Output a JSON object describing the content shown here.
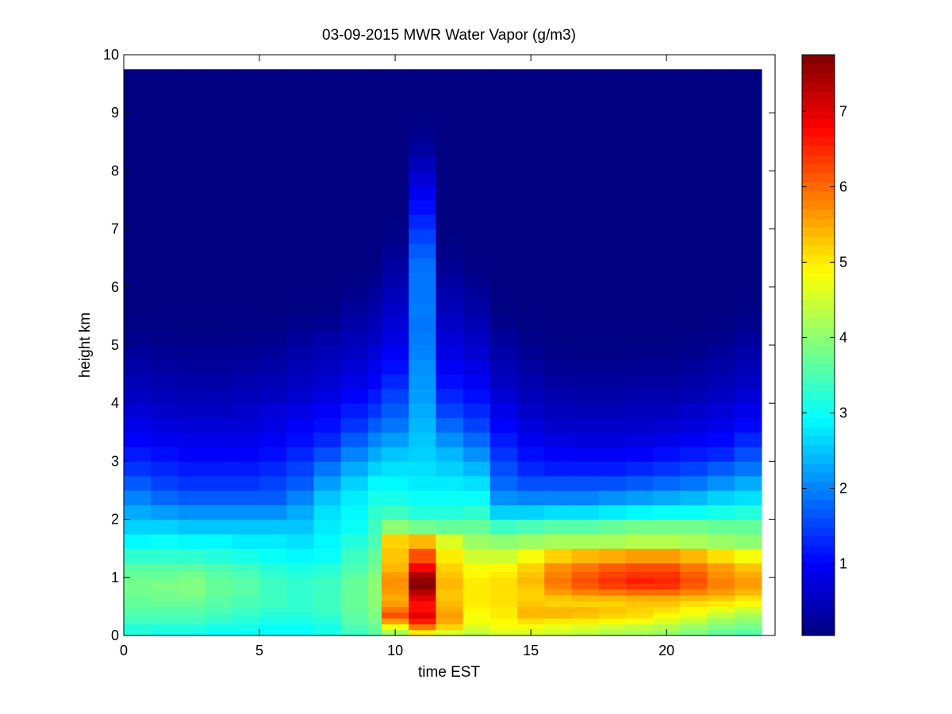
{
  "chart_data": {
    "type": "heatmap",
    "title": "03-09-2015 MWR Water Vapor (g/m3)",
    "xlabel": "time EST",
    "ylabel": "height km",
    "xlim": [
      0,
      24
    ],
    "ylim": [
      0,
      10
    ],
    "x_ticks": [
      0,
      5,
      10,
      15,
      20
    ],
    "x_tick_labels": [
      "0",
      "5",
      "10",
      "15",
      "20"
    ],
    "y_ticks": [
      0,
      1,
      2,
      3,
      4,
      5,
      6,
      7,
      8,
      9,
      10
    ],
    "y_tick_labels": [
      "0",
      "1",
      "2",
      "3",
      "4",
      "5",
      "6",
      "7",
      "8",
      "9",
      "10"
    ],
    "data_x_extent": [
      0,
      23.5
    ],
    "data_y_extent": [
      0,
      9.75
    ],
    "colorbar": {
      "colormap": "jet",
      "clim": [
        0.05,
        7.75
      ],
      "ticks": [
        1,
        2,
        3,
        4,
        5,
        6,
        7
      ],
      "tick_labels": [
        "1",
        "2",
        "3",
        "4",
        "5",
        "6",
        "7"
      ]
    },
    "heights_km": [
      0,
      0.1,
      0.2,
      0.3,
      0.4,
      0.5,
      0.6,
      0.7,
      0.8,
      0.9,
      1.0,
      1.1,
      1.25,
      1.5,
      1.75,
      2.0,
      2.25,
      2.5,
      2.75,
      3.0,
      3.25,
      3.5,
      3.75,
      4.0,
      4.25,
      4.5,
      4.75,
      5.0,
      5.25,
      5.5,
      5.75,
      6.0,
      6.25,
      6.5,
      6.75,
      7.0,
      7.25,
      7.5,
      7.75,
      8.0,
      8.25,
      8.5,
      8.75,
      9.0,
      9.25,
      9.5
    ],
    "time_hours": [
      0,
      1,
      2,
      3,
      4,
      5,
      6,
      7,
      8,
      9,
      9.5,
      10.5,
      11.5,
      12.5,
      13.5,
      14.5,
      15.5,
      16.5,
      17.5,
      18.5,
      19.5,
      20.5,
      21.5,
      22.5
    ],
    "profiles": [
      {
        "time": 0,
        "vals": [
          3.2,
          3.2,
          3.4,
          3.5,
          3.6,
          3.7,
          3.7,
          3.8,
          3.8,
          3.8,
          3.7,
          3.6,
          3.3,
          2.9,
          2.6,
          2.3,
          2.0,
          1.7,
          1.4,
          1.2,
          1.0,
          0.85,
          0.7,
          0.55,
          0.45,
          0.35,
          0.25,
          0.15,
          0.1
        ]
      },
      {
        "time": 1,
        "vals": [
          3.1,
          3.2,
          3.4,
          3.5,
          3.6,
          3.7,
          3.8,
          3.8,
          3.9,
          3.8,
          3.7,
          3.6,
          3.3,
          3.0,
          2.6,
          2.2,
          1.8,
          1.5,
          1.3,
          1.1,
          0.9,
          0.75,
          0.6,
          0.5,
          0.4,
          0.3,
          0.2,
          0.12,
          0.08
        ]
      },
      {
        "time": 2,
        "vals": [
          3.1,
          3.2,
          3.4,
          3.5,
          3.6,
          3.7,
          3.8,
          3.9,
          3.9,
          3.9,
          3.8,
          3.6,
          3.3,
          2.9,
          2.5,
          2.1,
          1.7,
          1.4,
          1.2,
          1.0,
          0.85,
          0.7,
          0.55,
          0.45,
          0.35,
          0.25,
          0.18,
          0.1,
          0.07
        ]
      },
      {
        "time": 3,
        "vals": [
          3.0,
          3.1,
          3.3,
          3.4,
          3.5,
          3.6,
          3.6,
          3.7,
          3.7,
          3.7,
          3.6,
          3.5,
          3.2,
          2.9,
          2.5,
          2.1,
          1.7,
          1.4,
          1.2,
          1.0,
          0.85,
          0.7,
          0.55,
          0.45,
          0.35,
          0.25,
          0.18,
          0.1,
          0.07
        ]
      },
      {
        "time": 4,
        "vals": [
          3.0,
          3.1,
          3.2,
          3.3,
          3.4,
          3.5,
          3.5,
          3.6,
          3.6,
          3.6,
          3.5,
          3.4,
          3.1,
          2.8,
          2.5,
          2.1,
          1.7,
          1.4,
          1.2,
          1.0,
          0.85,
          0.7,
          0.6,
          0.5,
          0.4,
          0.3,
          0.2,
          0.12,
          0.08
        ]
      },
      {
        "time": 5,
        "vals": [
          3.0,
          3.0,
          3.1,
          3.2,
          3.3,
          3.4,
          3.4,
          3.4,
          3.4,
          3.4,
          3.3,
          3.2,
          3.0,
          2.8,
          2.5,
          2.1,
          1.7,
          1.5,
          1.3,
          1.1,
          0.95,
          0.8,
          0.7,
          0.55,
          0.45,
          0.35,
          0.25,
          0.15,
          0.1
        ]
      },
      {
        "time": 6,
        "vals": [
          3.0,
          3.0,
          3.1,
          3.2,
          3.3,
          3.3,
          3.3,
          3.3,
          3.3,
          3.3,
          3.2,
          3.1,
          2.9,
          2.7,
          2.5,
          2.3,
          2.0,
          1.7,
          1.5,
          1.3,
          1.1,
          0.95,
          0.8,
          0.65,
          0.55,
          0.45,
          0.35,
          0.25,
          0.15,
          0.08
        ]
      },
      {
        "time": 7,
        "vals": [
          3.1,
          3.1,
          3.2,
          3.3,
          3.4,
          3.4,
          3.4,
          3.4,
          3.4,
          3.4,
          3.3,
          3.2,
          3.0,
          2.9,
          2.8,
          2.7,
          2.5,
          2.2,
          1.9,
          1.6,
          1.3,
          1.1,
          0.95,
          0.8,
          0.65,
          0.55,
          0.45,
          0.35,
          0.2,
          0.1
        ]
      },
      {
        "time": 8,
        "vals": [
          3.4,
          3.5,
          3.6,
          3.6,
          3.7,
          3.7,
          3.7,
          3.7,
          3.7,
          3.7,
          3.6,
          3.5,
          3.4,
          3.2,
          3.0,
          2.9,
          2.8,
          2.6,
          2.3,
          2.0,
          1.7,
          1.4,
          1.2,
          1.0,
          0.85,
          0.7,
          0.55,
          0.45,
          0.35,
          0.25,
          0.15,
          0.08
        ]
      },
      {
        "time": 9,
        "vals": [
          3.6,
          3.7,
          3.8,
          3.9,
          3.9,
          4.0,
          4.0,
          4.0,
          4.0,
          4.0,
          3.9,
          3.8,
          3.7,
          3.5,
          3.4,
          3.3,
          3.1,
          2.9,
          2.6,
          2.3,
          2.0,
          1.7,
          1.4,
          1.2,
          1.0,
          0.85,
          0.7,
          0.55,
          0.45,
          0.35,
          0.25,
          0.15,
          0.08
        ]
      },
      {
        "time": 9.5,
        "vals": [
          4.2,
          4.8,
          5.6,
          6.2,
          5.9,
          5.6,
          5.5,
          5.6,
          5.7,
          5.7,
          5.6,
          5.4,
          5.3,
          5.2,
          4.0,
          3.4,
          3.1,
          2.9,
          2.7,
          2.5,
          2.2,
          1.9,
          1.7,
          1.5,
          1.3,
          1.1,
          0.95,
          0.8,
          0.7,
          0.6,
          0.5,
          0.4,
          0.3,
          0.2,
          0.12,
          0.08
        ]
      },
      {
        "time": 10.5,
        "vals": [
          5.0,
          5.9,
          6.6,
          7.0,
          6.7,
          6.7,
          7.0,
          7.3,
          7.7,
          7.6,
          7.4,
          6.8,
          6.2,
          5.4,
          3.8,
          3.2,
          3.0,
          2.8,
          2.7,
          2.6,
          2.5,
          2.4,
          2.3,
          2.2,
          2.15,
          2.1,
          2.0,
          1.95,
          1.9,
          1.95,
          1.9,
          1.9,
          1.85,
          1.7,
          1.5,
          1.3,
          1.1,
          0.9,
          0.7,
          0.5,
          0.3,
          0.15,
          0.08
        ]
      },
      {
        "time": 11.5,
        "vals": [
          4.6,
          5.2,
          5.5,
          5.6,
          5.5,
          5.4,
          5.3,
          5.3,
          5.4,
          5.4,
          5.3,
          5.2,
          5.0,
          4.6,
          3.7,
          3.2,
          3.0,
          2.8,
          2.6,
          2.4,
          2.1,
          1.8,
          1.5,
          1.3,
          1.1,
          0.95,
          0.8,
          0.7,
          0.6,
          0.5,
          0.4,
          0.3,
          0.2,
          0.12,
          0.08
        ]
      },
      {
        "time": 12.5,
        "vals": [
          4.4,
          4.6,
          4.8,
          4.8,
          4.9,
          5.0,
          5.0,
          5.0,
          5.0,
          5.0,
          4.9,
          4.8,
          4.5,
          4.1,
          3.7,
          3.3,
          3.0,
          2.7,
          2.4,
          2.1,
          1.8,
          1.5,
          1.3,
          1.1,
          0.95,
          0.8,
          0.65,
          0.55,
          0.45,
          0.35,
          0.25,
          0.15,
          0.08
        ]
      },
      {
        "time": 13.5,
        "vals": [
          4.6,
          4.8,
          4.9,
          5.0,
          5.0,
          5.1,
          5.1,
          5.1,
          5.1,
          5.1,
          5.0,
          4.9,
          4.5,
          4.0,
          3.4,
          2.6,
          2.1,
          1.8,
          1.6,
          1.4,
          1.2,
          1.0,
          0.85,
          0.7,
          0.55,
          0.45,
          0.35,
          0.25,
          0.15,
          0.08
        ]
      },
      {
        "time": 14.5,
        "vals": [
          4.6,
          4.8,
          5.1,
          5.4,
          5.4,
          5.3,
          5.2,
          5.2,
          5.3,
          5.4,
          5.3,
          5.2,
          4.8,
          4.1,
          3.5,
          2.6,
          2.0,
          1.6,
          1.3,
          1.1,
          0.9,
          0.75,
          0.6,
          0.5,
          0.4,
          0.3,
          0.2,
          0.12,
          0.08
        ]
      },
      {
        "time": 15.5,
        "vals": [
          4.5,
          4.7,
          5.0,
          5.4,
          5.4,
          5.2,
          5.3,
          5.6,
          5.8,
          5.9,
          5.8,
          5.7,
          5.2,
          4.2,
          3.6,
          2.7,
          2.0,
          1.6,
          1.2,
          1.0,
          0.8,
          0.6,
          0.5,
          0.4,
          0.3,
          0.2,
          0.12,
          0.08
        ]
      },
      {
        "time": 16.5,
        "vals": [
          4.4,
          4.6,
          5.0,
          5.3,
          5.4,
          5.2,
          5.4,
          5.8,
          6.1,
          6.2,
          6.1,
          5.9,
          5.4,
          4.2,
          3.6,
          2.7,
          2.0,
          1.6,
          1.2,
          0.95,
          0.75,
          0.6,
          0.45,
          0.35,
          0.25,
          0.18,
          0.1,
          0.07
        ]
      },
      {
        "time": 17.5,
        "vals": [
          4.3,
          4.5,
          4.9,
          5.2,
          5.3,
          5.2,
          5.4,
          5.9,
          6.3,
          6.4,
          6.3,
          6.1,
          5.5,
          4.2,
          3.7,
          2.8,
          2.1,
          1.6,
          1.2,
          0.95,
          0.75,
          0.6,
          0.45,
          0.35,
          0.25,
          0.18,
          0.1,
          0.07
        ]
      },
      {
        "time": 18.5,
        "vals": [
          4.2,
          4.4,
          4.8,
          5.1,
          5.2,
          5.3,
          5.5,
          6.0,
          6.4,
          6.6,
          6.4,
          6.2,
          5.6,
          4.3,
          3.8,
          2.9,
          2.2,
          1.7,
          1.3,
          1.0,
          0.8,
          0.6,
          0.5,
          0.4,
          0.3,
          0.2,
          0.12,
          0.08
        ]
      },
      {
        "time": 19.5,
        "vals": [
          4.1,
          4.3,
          4.6,
          4.9,
          5.1,
          5.3,
          5.5,
          6.0,
          6.4,
          6.5,
          6.4,
          6.2,
          5.6,
          4.3,
          3.8,
          3.0,
          2.3,
          1.8,
          1.4,
          1.1,
          0.85,
          0.65,
          0.5,
          0.4,
          0.3,
          0.2,
          0.12,
          0.08
        ]
      },
      {
        "time": 20.5,
        "vals": [
          3.9,
          4.1,
          4.4,
          4.7,
          4.9,
          5.1,
          5.4,
          5.8,
          6.1,
          6.2,
          6.1,
          5.9,
          5.4,
          4.2,
          3.8,
          3.0,
          2.4,
          1.9,
          1.5,
          1.2,
          0.95,
          0.75,
          0.6,
          0.45,
          0.35,
          0.25,
          0.15,
          0.1
        ]
      },
      {
        "time": 21.5,
        "vals": [
          3.7,
          3.9,
          4.1,
          4.4,
          4.7,
          5.0,
          5.3,
          5.6,
          5.8,
          5.8,
          5.7,
          5.6,
          5.1,
          4.1,
          3.7,
          3.1,
          2.6,
          2.1,
          1.7,
          1.3,
          1.05,
          0.85,
          0.7,
          0.55,
          0.45,
          0.35,
          0.25,
          0.15,
          0.1
        ]
      },
      {
        "time": 22.5,
        "vals": [
          3.6,
          3.8,
          4.0,
          4.2,
          4.5,
          4.8,
          5.1,
          5.4,
          5.6,
          5.6,
          5.5,
          5.3,
          4.8,
          4.0,
          3.7,
          3.2,
          2.7,
          2.3,
          1.9,
          1.6,
          1.3,
          1.05,
          0.85,
          0.7,
          0.55,
          0.45,
          0.35,
          0.25,
          0.15,
          0.1
        ]
      }
    ]
  }
}
